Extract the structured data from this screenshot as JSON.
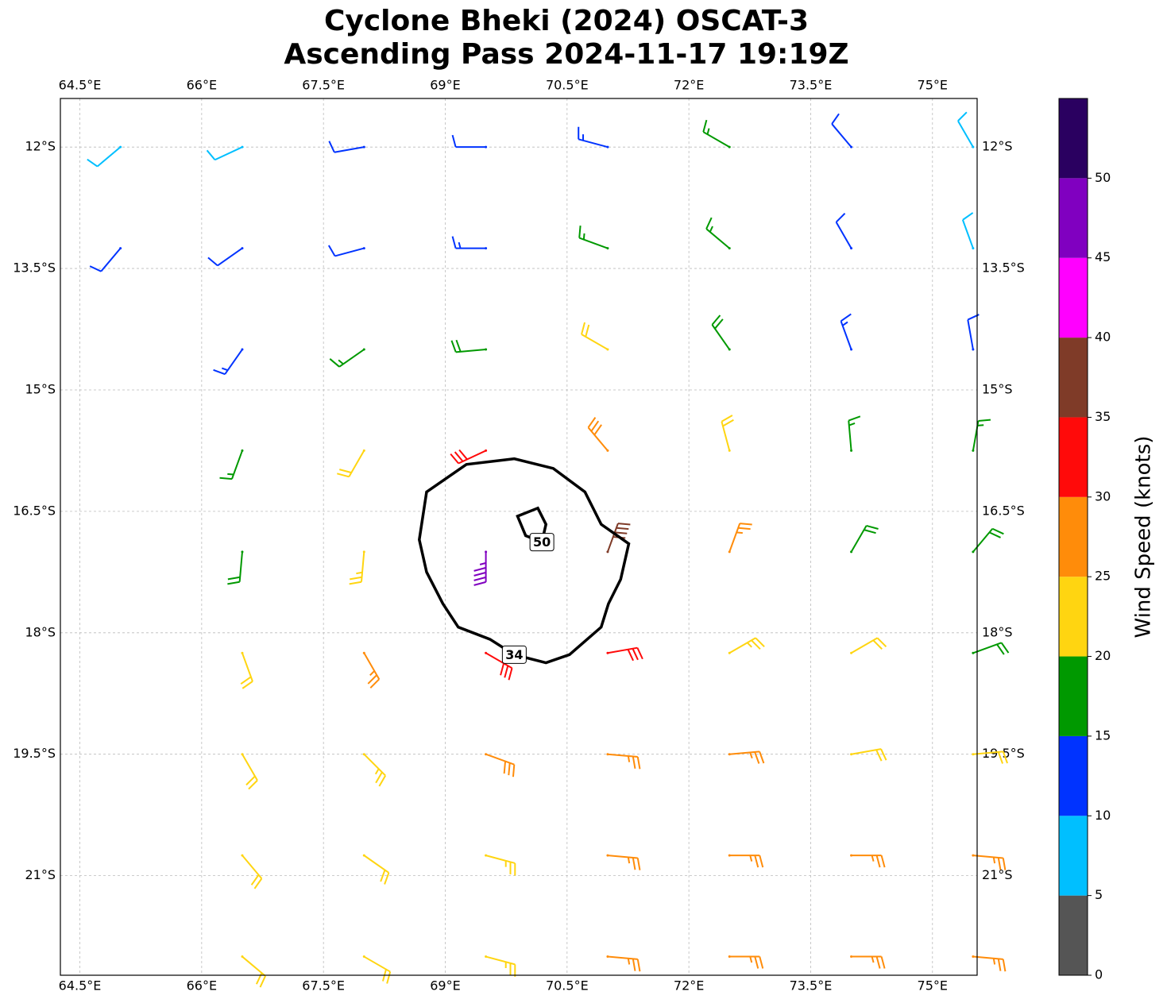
{
  "chart_data": {
    "type": "wind-barb-map",
    "title": [
      "Cyclone Bheki (2024) OSCAT-3",
      "Ascending Pass 2024-11-17 19:19Z"
    ],
    "xlim": [
      64.26,
      75.55
    ],
    "ylim": [
      -22.23,
      -11.4
    ],
    "xticks": [
      {
        "value": 64.5,
        "label": "64.5°E"
      },
      {
        "value": 66,
        "label": "66°E"
      },
      {
        "value": 67.5,
        "label": "67.5°E"
      },
      {
        "value": 69,
        "label": "69°E"
      },
      {
        "value": 70.5,
        "label": "70.5°E"
      },
      {
        "value": 72,
        "label": "72°E"
      },
      {
        "value": 73.5,
        "label": "73.5°E"
      },
      {
        "value": 75,
        "label": "75°E"
      }
    ],
    "yticks": [
      {
        "value": -12,
        "label": "12°S"
      },
      {
        "value": -13.5,
        "label": "13.5°S"
      },
      {
        "value": -15,
        "label": "15°S"
      },
      {
        "value": -16.5,
        "label": "16.5°S"
      },
      {
        "value": -18,
        "label": "18°S"
      },
      {
        "value": -19.5,
        "label": "19.5°S"
      },
      {
        "value": -21,
        "label": "21°S"
      }
    ],
    "grid": true,
    "grid_lon": [
      65,
      66.5,
      68,
      69.5,
      71,
      72.5,
      74,
      75.5
    ],
    "grid_lat": [
      -12,
      -13.25,
      -14.5,
      -15.75,
      -17,
      -18.25,
      -19.5,
      -20.75,
      -22
    ],
    "speed": [
      [
        8,
        8,
        12,
        12,
        14,
        17,
        10,
        8
      ],
      [
        10,
        12,
        12,
        14,
        17,
        17,
        12,
        8
      ],
      [
        null,
        14,
        15,
        18,
        20,
        18,
        14,
        12
      ],
      [
        null,
        17,
        20,
        30,
        28,
        22,
        17,
        15
      ],
      [
        null,
        18,
        24,
        45,
        38,
        25,
        18,
        18
      ],
      [
        null,
        22,
        25,
        32,
        32,
        24,
        20,
        18
      ],
      [
        null,
        22,
        24,
        28,
        27,
        25,
        22,
        22
      ],
      [
        null,
        22,
        22,
        24,
        26,
        25,
        25,
        26
      ],
      [
        null,
        22,
        22,
        23,
        26,
        26,
        26,
        27
      ]
    ],
    "direction": [
      [
        230,
        245,
        260,
        270,
        285,
        300,
        320,
        330
      ],
      [
        220,
        235,
        255,
        270,
        290,
        310,
        330,
        340
      ],
      [
        null,
        215,
        235,
        265,
        300,
        325,
        340,
        350
      ],
      [
        null,
        200,
        210,
        245,
        320,
        345,
        355,
        10
      ],
      [
        null,
        185,
        185,
        180,
        20,
        20,
        30,
        40
      ],
      [
        null,
        160,
        150,
        120,
        80,
        60,
        60,
        70
      ],
      [
        null,
        150,
        135,
        110,
        95,
        85,
        80,
        85
      ],
      [
        null,
        140,
        125,
        105,
        95,
        90,
        90,
        95
      ],
      [
        null,
        130,
        120,
        105,
        95,
        90,
        90,
        95
      ]
    ],
    "contours": [
      {
        "level": 34,
        "lon": [
          68.77,
          69.26,
          69.85,
          70.33,
          70.72,
          70.92,
          71.26,
          71.16,
          71.01,
          70.92,
          70.53,
          70.24,
          69.85,
          69.55,
          69.16,
          68.97,
          68.77,
          68.68
        ],
        "lat": [
          -16.26,
          -15.92,
          -15.85,
          -15.97,
          -16.26,
          -16.66,
          -16.9,
          -17.34,
          -17.64,
          -17.93,
          -18.27,
          -18.37,
          -18.27,
          -18.08,
          -17.93,
          -17.64,
          -17.25,
          -16.85
        ]
      },
      {
        "level": 50,
        "lon": [
          69.89,
          69.99,
          70.19,
          70.24,
          70.14
        ],
        "lat": [
          -16.56,
          -16.8,
          -16.88,
          -16.66,
          -16.46
        ]
      }
    ],
    "colorbar": {
      "label": "Wind Speed (knots)",
      "bounds": [
        0,
        5,
        10,
        15,
        20,
        25,
        30,
        35,
        40,
        45,
        50,
        55
      ],
      "colors": [
        "#555555",
        "#00bfff",
        "#0033ff",
        "#009900",
        "#ffd511",
        "#ff8c0a",
        "#ff0a0a",
        "#7f3b28",
        "#ff00ff",
        "#8000c0",
        "#2a0060"
      ],
      "ticks": [
        0,
        5,
        10,
        15,
        20,
        25,
        30,
        35,
        40,
        45,
        50
      ]
    }
  }
}
